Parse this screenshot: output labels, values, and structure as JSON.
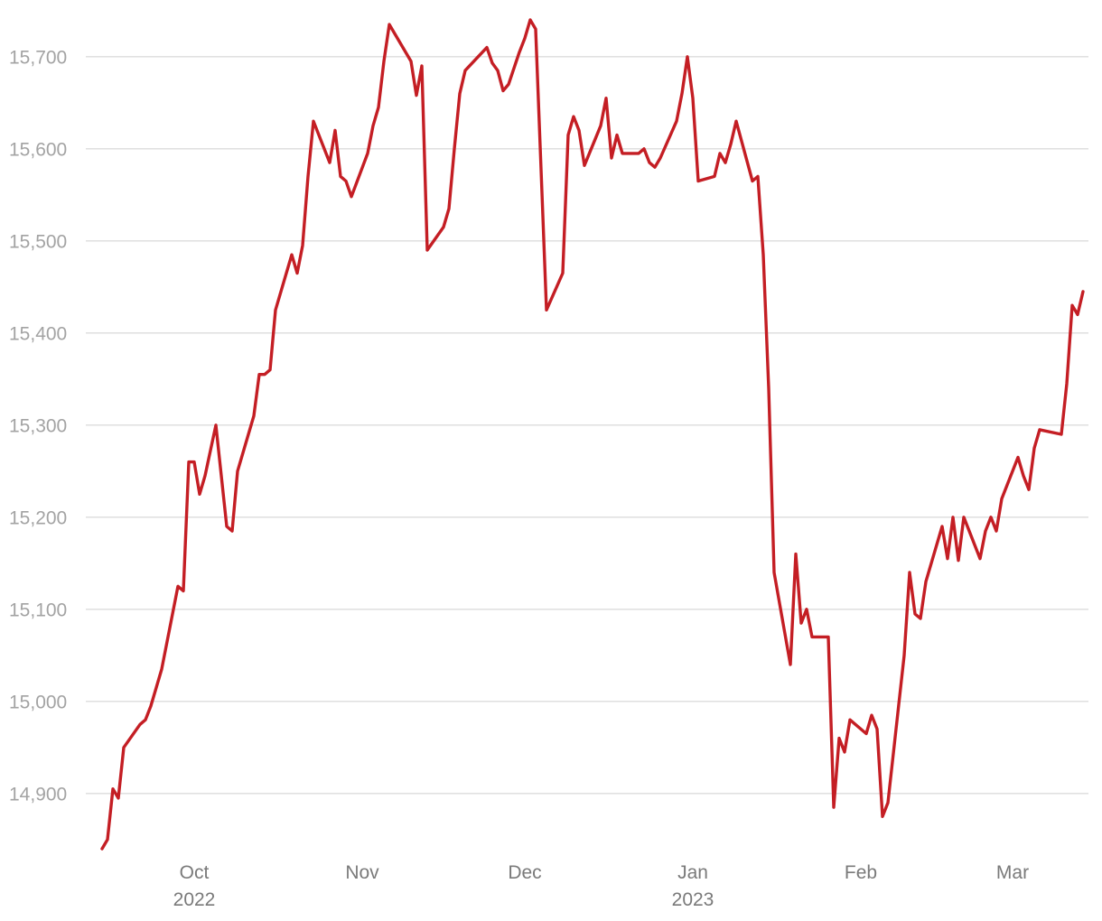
{
  "chart_data": {
    "type": "line",
    "title": "",
    "xlabel": "",
    "ylabel": "",
    "xlim": [
      "2022-09-14",
      "2023-03-10"
    ],
    "ylim": [
      14840,
      15740
    ],
    "grid": "horizontal",
    "colors": {
      "line": "#c41e24",
      "grid": "#dcdcdc",
      "ytick": "#a3a3a3",
      "xtick": "#7a7a7a"
    },
    "y_ticks": [
      {
        "value": 14900,
        "label": "14,900"
      },
      {
        "value": 15000,
        "label": "15,000"
      },
      {
        "value": 15100,
        "label": "15,100"
      },
      {
        "value": 15200,
        "label": "15,200"
      },
      {
        "value": 15300,
        "label": "15,300"
      },
      {
        "value": 15400,
        "label": "15,400"
      },
      {
        "value": 15500,
        "label": "15,500"
      },
      {
        "value": 15600,
        "label": "15,600"
      },
      {
        "value": 15700,
        "label": "15,700"
      }
    ],
    "x_ticks": [
      {
        "date": "2022-10-01",
        "label": "Oct",
        "sublabel": "2022"
      },
      {
        "date": "2022-11-01",
        "label": "Nov",
        "sublabel": ""
      },
      {
        "date": "2022-12-01",
        "label": "Dec",
        "sublabel": ""
      },
      {
        "date": "2023-01-01",
        "label": "Jan",
        "sublabel": "2023"
      },
      {
        "date": "2023-02-01",
        "label": "Feb",
        "sublabel": ""
      },
      {
        "date": "2023-03-01",
        "label": "Mar",
        "sublabel": ""
      }
    ],
    "series": [
      {
        "points": [
          [
            "2022-09-14",
            14840
          ],
          [
            "2022-09-15",
            14850
          ],
          [
            "2022-09-16",
            14905
          ],
          [
            "2022-09-17",
            14895
          ],
          [
            "2022-09-18",
            14950
          ],
          [
            "2022-09-21",
            14975
          ],
          [
            "2022-09-22",
            14980
          ],
          [
            "2022-09-23",
            14995
          ],
          [
            "2022-09-25",
            15035
          ],
          [
            "2022-09-28",
            15125
          ],
          [
            "2022-09-29",
            15120
          ],
          [
            "2022-09-30",
            15260
          ],
          [
            "2022-10-01",
            15260
          ],
          [
            "2022-10-02",
            15225
          ],
          [
            "2022-10-03",
            15245
          ],
          [
            "2022-10-05",
            15300
          ],
          [
            "2022-10-07",
            15190
          ],
          [
            "2022-10-08",
            15185
          ],
          [
            "2022-10-09",
            15250
          ],
          [
            "2022-10-12",
            15310
          ],
          [
            "2022-10-13",
            15355
          ],
          [
            "2022-10-14",
            15355
          ],
          [
            "2022-10-15",
            15360
          ],
          [
            "2022-10-16",
            15425
          ],
          [
            "2022-10-19",
            15485
          ],
          [
            "2022-10-20",
            15465
          ],
          [
            "2022-10-21",
            15495
          ],
          [
            "2022-10-22",
            15570
          ],
          [
            "2022-10-23",
            15630
          ],
          [
            "2022-10-26",
            15585
          ],
          [
            "2022-10-27",
            15620
          ],
          [
            "2022-10-28",
            15570
          ],
          [
            "2022-10-29",
            15565
          ],
          [
            "2022-10-30",
            15548
          ],
          [
            "2022-11-02",
            15595
          ],
          [
            "2022-11-03",
            15625
          ],
          [
            "2022-11-04",
            15645
          ],
          [
            "2022-11-05",
            15695
          ],
          [
            "2022-11-06",
            15735
          ],
          [
            "2022-11-10",
            15695
          ],
          [
            "2022-11-11",
            15658
          ],
          [
            "2022-11-12",
            15690
          ],
          [
            "2022-11-13",
            15490
          ],
          [
            "2022-11-16",
            15515
          ],
          [
            "2022-11-17",
            15535
          ],
          [
            "2022-11-18",
            15600
          ],
          [
            "2022-11-19",
            15660
          ],
          [
            "2022-11-20",
            15685
          ],
          [
            "2022-11-24",
            15710
          ],
          [
            "2022-11-25",
            15693
          ],
          [
            "2022-11-26",
            15685
          ],
          [
            "2022-11-27",
            15663
          ],
          [
            "2022-11-28",
            15670
          ],
          [
            "2022-11-30",
            15705
          ],
          [
            "2022-12-01",
            15720
          ],
          [
            "2022-12-02",
            15740
          ],
          [
            "2022-12-03",
            15730
          ],
          [
            "2022-12-05",
            15425
          ],
          [
            "2022-12-08",
            15465
          ],
          [
            "2022-12-09",
            15615
          ],
          [
            "2022-12-10",
            15635
          ],
          [
            "2022-12-11",
            15620
          ],
          [
            "2022-12-12",
            15582
          ],
          [
            "2022-12-15",
            15625
          ],
          [
            "2022-12-16",
            15655
          ],
          [
            "2022-12-17",
            15590
          ],
          [
            "2022-12-18",
            15615
          ],
          [
            "2022-12-19",
            15595
          ],
          [
            "2022-12-22",
            15595
          ],
          [
            "2022-12-23",
            15600
          ],
          [
            "2022-12-24",
            15585
          ],
          [
            "2022-12-25",
            15580
          ],
          [
            "2022-12-26",
            15590
          ],
          [
            "2022-12-29",
            15630
          ],
          [
            "2022-12-30",
            15660
          ],
          [
            "2022-12-31",
            15700
          ],
          [
            "2023-01-01",
            15655
          ],
          [
            "2023-01-02",
            15565
          ],
          [
            "2023-01-05",
            15570
          ],
          [
            "2023-01-06",
            15595
          ],
          [
            "2023-01-07",
            15585
          ],
          [
            "2023-01-08",
            15605
          ],
          [
            "2023-01-09",
            15630
          ],
          [
            "2023-01-12",
            15565
          ],
          [
            "2023-01-13",
            15570
          ],
          [
            "2023-01-14",
            15485
          ],
          [
            "2023-01-15",
            15340
          ],
          [
            "2023-01-16",
            15140
          ],
          [
            "2023-01-19",
            15040
          ],
          [
            "2023-01-20",
            15160
          ],
          [
            "2023-01-21",
            15085
          ],
          [
            "2023-01-22",
            15100
          ],
          [
            "2023-01-23",
            15070
          ],
          [
            "2023-01-26",
            15070
          ],
          [
            "2023-01-27",
            14885
          ],
          [
            "2023-01-28",
            14960
          ],
          [
            "2023-01-29",
            14945
          ],
          [
            "2023-01-30",
            14980
          ],
          [
            "2023-02-02",
            14965
          ],
          [
            "2023-02-03",
            14985
          ],
          [
            "2023-02-04",
            14970
          ],
          [
            "2023-02-05",
            14875
          ],
          [
            "2023-02-06",
            14890
          ],
          [
            "2023-02-09",
            15050
          ],
          [
            "2023-02-10",
            15140
          ],
          [
            "2023-02-11",
            15095
          ],
          [
            "2023-02-12",
            15090
          ],
          [
            "2023-02-13",
            15130
          ],
          [
            "2023-02-16",
            15190
          ],
          [
            "2023-02-17",
            15155
          ],
          [
            "2023-02-18",
            15200
          ],
          [
            "2023-02-19",
            15153
          ],
          [
            "2023-02-20",
            15200
          ],
          [
            "2023-02-23",
            15155
          ],
          [
            "2023-02-24",
            15185
          ],
          [
            "2023-02-25",
            15200
          ],
          [
            "2023-02-26",
            15185
          ],
          [
            "2023-02-27",
            15220
          ],
          [
            "2023-03-02",
            15265
          ],
          [
            "2023-03-03",
            15245
          ],
          [
            "2023-03-04",
            15230
          ],
          [
            "2023-03-05",
            15275
          ],
          [
            "2023-03-06",
            15295
          ],
          [
            "2023-03-10",
            15290
          ],
          [
            "2023-03-11",
            15345
          ],
          [
            "2023-03-12",
            15430
          ],
          [
            "2023-03-13",
            15420
          ],
          [
            "2023-03-14",
            15445
          ]
        ]
      }
    ]
  }
}
